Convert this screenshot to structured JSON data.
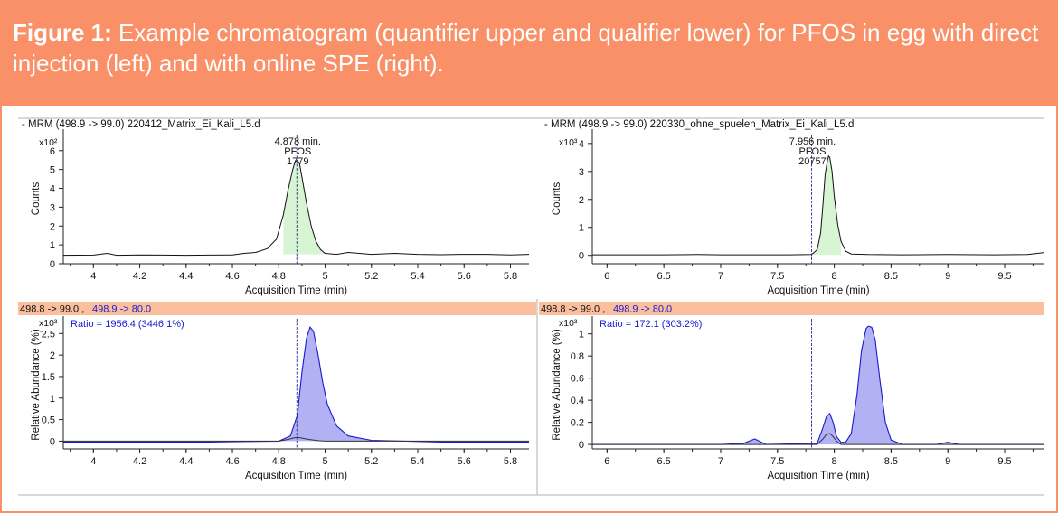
{
  "caption": {
    "label": "Figure 1:",
    "text": " Example chromatogram (quantifier upper and qualifier lower) for PFOS in egg with direct injection (left) and with online SPE (right)."
  },
  "colors": {
    "caption_bg": "#fa9068",
    "qualifier_header_bg": "#fbbf9e",
    "quantifier_fill": "#d8f5d3",
    "qualifier_fill": "#a9a9f2",
    "qualifier_line": "#1a1ad0",
    "ratio_text": "#1a1ad0",
    "marker_line": "#2c2c8c"
  },
  "chart_data": [
    {
      "type": "line",
      "panel": "quantifier-left",
      "title": "- MRM (498.9 -> 99.0) 220412_Matrix_Ei_Kali_L5.d",
      "ylabel": "Counts",
      "xlabel": "Acquisition Time (min)",
      "y_multiplier": "x10²",
      "xlim": [
        3.87,
        5.88
      ],
      "ylim": [
        0,
        6.9
      ],
      "xticks": [
        "4",
        "4.2",
        "4.4",
        "4.6",
        "4.8",
        "5",
        "5.2",
        "5.4",
        "5.6",
        "5.8"
      ],
      "xtick_values": [
        4,
        4.2,
        4.4,
        4.6,
        4.8,
        5,
        5.2,
        5.4,
        5.6,
        5.8
      ],
      "yticks": [
        "0",
        "1",
        "2",
        "3",
        "4",
        "5",
        "6"
      ],
      "ytick_values": [
        0,
        1,
        2,
        3,
        4,
        5,
        6
      ],
      "marker_x": 4.878,
      "peak_label": [
        "4.878 min.",
        "PFOS",
        "1779"
      ],
      "series": [
        {
          "kind": "quantifier",
          "x": [
            3.87,
            4.0,
            4.06,
            4.1,
            4.2,
            4.3,
            4.4,
            4.5,
            4.6,
            4.65,
            4.7,
            4.75,
            4.79,
            4.82,
            4.84,
            4.86,
            4.87,
            4.88,
            4.89,
            4.9,
            4.92,
            4.94,
            4.96,
            4.98,
            5.0,
            5.05,
            5.1,
            5.2,
            5.3,
            5.4,
            5.5,
            5.6,
            5.7,
            5.8,
            5.88
          ],
          "y": [
            0.45,
            0.46,
            0.55,
            0.45,
            0.47,
            0.46,
            0.45,
            0.46,
            0.47,
            0.55,
            0.6,
            0.8,
            1.3,
            2.6,
            3.9,
            5.0,
            5.4,
            5.5,
            5.3,
            4.6,
            3.2,
            2.0,
            1.2,
            0.75,
            0.55,
            0.5,
            0.6,
            0.5,
            0.55,
            0.5,
            0.48,
            0.5,
            0.5,
            0.47,
            0.5
          ]
        }
      ]
    },
    {
      "type": "line",
      "panel": "quantifier-right",
      "title": "- MRM (498.9 -> 99.0) 220330_ohne_spuelen_Matrix_Ei_Kali_L5.d",
      "ylabel": "Counts",
      "xlabel": "Acquisition Time (min)",
      "y_multiplier": "x10³",
      "xlim": [
        5.87,
        9.85
      ],
      "ylim": [
        -0.3,
        4.35
      ],
      "xticks": [
        "6",
        "6.5",
        "7",
        "7.5",
        "8",
        "8.5",
        "9",
        "9.5"
      ],
      "xtick_values": [
        6,
        6.5,
        7,
        7.5,
        8,
        8.5,
        9,
        9.5
      ],
      "yticks": [
        "0",
        "1",
        "2",
        "3",
        "4"
      ],
      "ytick_values": [
        0,
        1,
        2,
        3,
        4
      ],
      "marker_x": 7.8,
      "peak_label": [
        "7.956 min.",
        "PFOS",
        "20757"
      ],
      "series": [
        {
          "kind": "quantifier",
          "x": [
            5.87,
            6.2,
            6.5,
            6.8,
            7.0,
            7.3,
            7.6,
            7.8,
            7.85,
            7.88,
            7.9,
            7.92,
            7.94,
            7.95,
            7.96,
            7.98,
            8.0,
            8.03,
            8.06,
            8.1,
            8.15,
            8.3,
            8.6,
            9.0,
            9.4,
            9.7,
            9.85
          ],
          "y": [
            0.02,
            0.02,
            0.02,
            0.03,
            0.02,
            0.02,
            0.02,
            0.03,
            0.2,
            0.8,
            1.8,
            2.9,
            3.4,
            3.55,
            3.5,
            3.0,
            2.1,
            1.1,
            0.5,
            0.15,
            0.05,
            0.03,
            0.02,
            0.03,
            0.02,
            0.03,
            0.1
          ]
        }
      ]
    },
    {
      "type": "area",
      "panel": "qualifier-left",
      "header": [
        "498.8 -> 99.0 ,",
        "498.9 -> 80.0"
      ],
      "ratio": "Ratio = 1956.4 (3446.1%)",
      "ylabel": "Relative Abundance (%)",
      "xlabel": "Acquisition Time (min)",
      "y_multiplier": "x10³",
      "xlim": [
        3.87,
        5.88
      ],
      "ylim": [
        -0.18,
        2.8
      ],
      "xticks": [
        "4",
        "4.2",
        "4.4",
        "4.6",
        "4.8",
        "5",
        "5.2",
        "5.4",
        "5.6",
        "5.8"
      ],
      "xtick_values": [
        4,
        4.2,
        4.4,
        4.6,
        4.8,
        5,
        5.2,
        5.4,
        5.6,
        5.8
      ],
      "yticks": [
        "0",
        "0.5",
        "1",
        "1.5",
        "2",
        "2.5"
      ],
      "ytick_values": [
        0,
        0.5,
        1,
        1.5,
        2,
        2.5
      ],
      "marker_x": 4.878,
      "series": [
        {
          "kind": "qualifier",
          "x": [
            3.87,
            4.5,
            4.8,
            4.85,
            4.88,
            4.9,
            4.92,
            4.935,
            4.95,
            4.97,
            4.99,
            5.01,
            5.05,
            5.1,
            5.2,
            5.5,
            5.88
          ],
          "y": [
            -0.02,
            -0.02,
            0.0,
            0.12,
            0.6,
            1.6,
            2.4,
            2.65,
            2.55,
            2.0,
            1.35,
            0.85,
            0.35,
            0.12,
            0.02,
            -0.02,
            -0.02
          ]
        },
        {
          "kind": "quantifier",
          "x": [
            3.87,
            4.8,
            4.84,
            4.87,
            4.88,
            4.9,
            4.93,
            4.97,
            5.0,
            5.88
          ],
          "y": [
            0,
            0,
            0.04,
            0.08,
            0.09,
            0.07,
            0.04,
            0.01,
            0,
            0
          ]
        }
      ]
    },
    {
      "type": "area",
      "panel": "qualifier-right",
      "header": [
        "498.8 -> 99.0 ,",
        "498.9 -> 80.0"
      ],
      "ratio": "Ratio = 172.1 (303.2%)",
      "ylabel": "Relative Abundance (%)",
      "xlabel": "Acquisition Time (min)",
      "y_multiplier": "x10³",
      "xlim": [
        5.87,
        9.85
      ],
      "ylim": [
        -0.04,
        1.12
      ],
      "xticks": [
        "6",
        "6.5",
        "7",
        "7.5",
        "8",
        "8.5",
        "9",
        "9.5"
      ],
      "xtick_values": [
        6,
        6.5,
        7,
        7.5,
        8,
        8.5,
        9,
        9.5
      ],
      "yticks": [
        "0",
        "0.2",
        "0.4",
        "0.6",
        "0.8",
        "1"
      ],
      "ytick_values": [
        0,
        0.2,
        0.4,
        0.6,
        0.8,
        1
      ],
      "marker_x": 7.8,
      "series": [
        {
          "kind": "qualifier",
          "x": [
            5.87,
            7.0,
            7.2,
            7.3,
            7.4,
            7.85,
            7.9,
            7.93,
            7.96,
            7.99,
            8.02,
            8.06,
            8.1,
            8.15,
            8.2,
            8.24,
            8.28,
            8.3,
            8.33,
            8.36,
            8.4,
            8.45,
            8.5,
            8.6,
            8.9,
            9.0,
            9.1,
            9.85
          ],
          "y": [
            0.0,
            0.0,
            0.01,
            0.05,
            0.0,
            0.01,
            0.15,
            0.25,
            0.28,
            0.2,
            0.07,
            0.02,
            0.02,
            0.1,
            0.45,
            0.85,
            1.05,
            1.07,
            1.06,
            0.95,
            0.6,
            0.2,
            0.04,
            0.0,
            0.0,
            0.02,
            0.0,
            0.0
          ]
        },
        {
          "kind": "quantifier",
          "x": [
            5.87,
            7.85,
            7.9,
            7.93,
            7.96,
            7.99,
            8.02,
            8.06,
            9.85
          ],
          "y": [
            0,
            0,
            0.05,
            0.09,
            0.1,
            0.07,
            0.03,
            0,
            0
          ]
        }
      ]
    }
  ]
}
